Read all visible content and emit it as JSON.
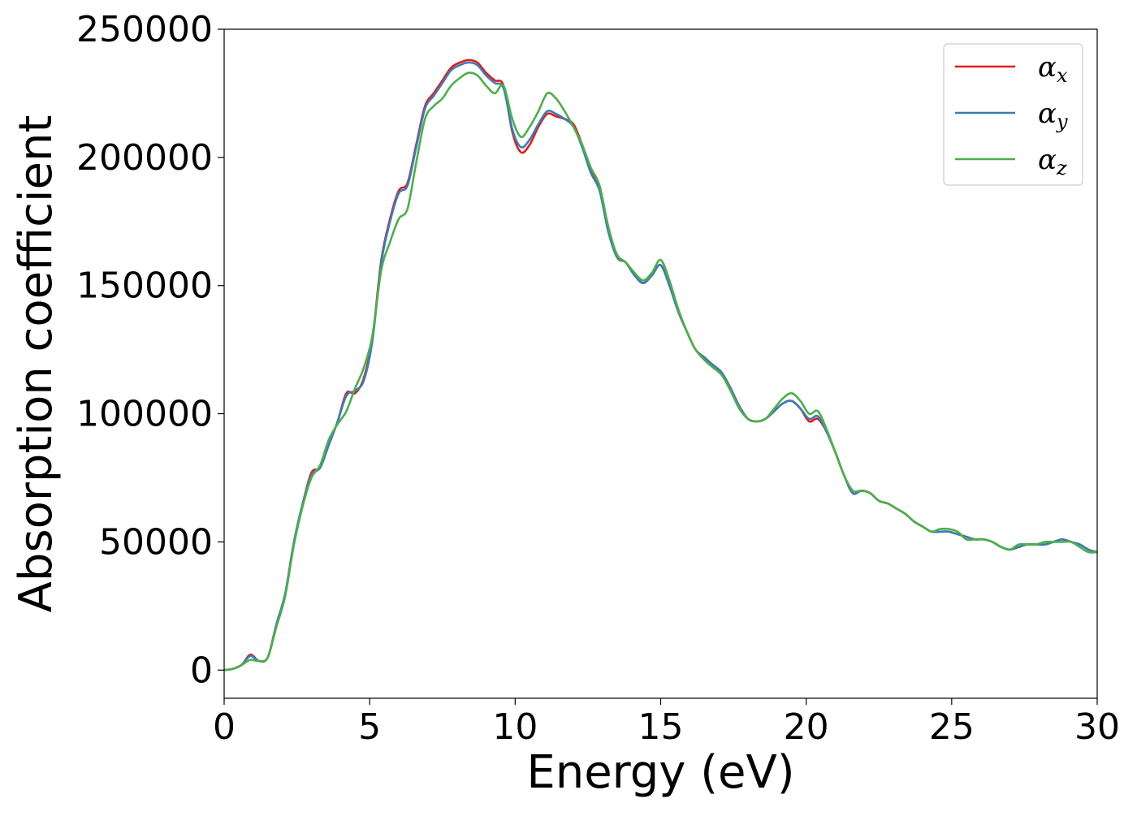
{
  "chart_data": {
    "type": "line",
    "title": "",
    "xlabel": "Energy (eV)",
    "ylabel": "Absorption coefficient",
    "xlim": [
      0,
      30
    ],
    "ylim": [
      -11000,
      250000
    ],
    "xticks": [
      0,
      5,
      10,
      15,
      20,
      25,
      30
    ],
    "yticks": [
      0,
      50000,
      100000,
      150000,
      200000,
      250000
    ],
    "xtick_labels": [
      "0",
      "5",
      "10",
      "15",
      "20",
      "25",
      "30"
    ],
    "ytick_labels": [
      "0",
      "50000",
      "100000",
      "150000",
      "200000",
      "250000"
    ],
    "grid": false,
    "legend_position": "top-right",
    "series": [
      {
        "name": "αx",
        "legend_base": "α",
        "legend_sub": "x",
        "color": "#e41a1c",
        "x": [
          0,
          0.3,
          0.6,
          0.9,
          1.2,
          1.5,
          1.8,
          2.1,
          2.4,
          2.7,
          3.0,
          3.3,
          3.6,
          3.9,
          4.2,
          4.5,
          4.8,
          5.1,
          5.4,
          5.7,
          6.0,
          6.3,
          6.6,
          6.9,
          7.2,
          7.5,
          7.8,
          8.1,
          8.4,
          8.7,
          9.0,
          9.3,
          9.6,
          9.9,
          10.2,
          10.5,
          10.8,
          11.1,
          11.4,
          11.7,
          12.0,
          12.3,
          12.6,
          12.9,
          13.2,
          13.5,
          13.8,
          14.1,
          14.4,
          14.7,
          15.0,
          15.3,
          15.6,
          15.9,
          16.2,
          16.5,
          16.8,
          17.1,
          17.4,
          17.7,
          18.0,
          18.3,
          18.6,
          18.9,
          19.2,
          19.5,
          19.8,
          20.1,
          20.4,
          20.7,
          21.0,
          21.3,
          21.6,
          21.9,
          22.2,
          22.5,
          22.8,
          23.1,
          23.4,
          23.7,
          24.0,
          24.3,
          24.6,
          24.9,
          25.2,
          25.5,
          25.8,
          26.1,
          26.4,
          26.7,
          27.0,
          27.3,
          27.6,
          27.9,
          28.2,
          28.5,
          28.8,
          29.1,
          29.4,
          29.7,
          30.0
        ],
        "y": [
          0,
          500,
          2000,
          6000,
          3500,
          5000,
          18000,
          30000,
          50000,
          65000,
          77000,
          79000,
          88000,
          97000,
          108000,
          108000,
          114000,
          130000,
          160000,
          176000,
          187000,
          190000,
          205000,
          220000,
          225000,
          230000,
          235000,
          237000,
          238000,
          237000,
          233000,
          230000,
          228000,
          210000,
          202000,
          205000,
          212000,
          217000,
          216000,
          215000,
          213000,
          205000,
          195000,
          188000,
          172000,
          162000,
          159000,
          154000,
          151000,
          154000,
          158000,
          150000,
          140000,
          132000,
          125000,
          122000,
          119000,
          116000,
          110000,
          103000,
          98000,
          97000,
          98000,
          101000,
          104000,
          105000,
          102000,
          97000,
          98000,
          93000,
          85000,
          76000,
          69000,
          70000,
          69000,
          66000,
          65000,
          63000,
          61000,
          58000,
          56000,
          54000,
          54000,
          54000,
          53000,
          52000,
          51000,
          51000,
          50000,
          48000,
          47000,
          48000,
          49000,
          49000,
          49000,
          50000,
          51000,
          50000,
          49000,
          47000,
          46000
        ]
      },
      {
        "name": "αy",
        "legend_base": "α",
        "legend_sub": "y",
        "color": "#377eb8",
        "x": [
          0,
          0.3,
          0.6,
          0.9,
          1.2,
          1.5,
          1.8,
          2.1,
          2.4,
          2.7,
          3.0,
          3.3,
          3.6,
          3.9,
          4.2,
          4.5,
          4.8,
          5.1,
          5.4,
          5.7,
          6.0,
          6.3,
          6.6,
          6.9,
          7.2,
          7.5,
          7.8,
          8.1,
          8.4,
          8.7,
          9.0,
          9.3,
          9.6,
          9.9,
          10.2,
          10.5,
          10.8,
          11.1,
          11.4,
          11.7,
          12.0,
          12.3,
          12.6,
          12.9,
          13.2,
          13.5,
          13.8,
          14.1,
          14.4,
          14.7,
          15.0,
          15.3,
          15.6,
          15.9,
          16.2,
          16.5,
          16.8,
          17.1,
          17.4,
          17.7,
          18.0,
          18.3,
          18.6,
          18.9,
          19.2,
          19.5,
          19.8,
          20.1,
          20.4,
          20.7,
          21.0,
          21.3,
          21.6,
          21.9,
          22.2,
          22.5,
          22.8,
          23.1,
          23.4,
          23.7,
          24.0,
          24.3,
          24.6,
          24.9,
          25.2,
          25.5,
          25.8,
          26.1,
          26.4,
          26.7,
          27.0,
          27.3,
          27.6,
          27.9,
          28.2,
          28.5,
          28.8,
          29.1,
          29.4,
          29.7,
          30.0
        ],
        "y": [
          0,
          500,
          2000,
          5500,
          3500,
          5000,
          18000,
          30000,
          50000,
          65000,
          76000,
          79000,
          88000,
          97000,
          107000,
          109000,
          113000,
          129000,
          159000,
          175000,
          186000,
          189000,
          204000,
          219000,
          224000,
          229000,
          234000,
          236000,
          237000,
          236000,
          232000,
          229000,
          227000,
          211000,
          204000,
          207000,
          213000,
          218000,
          217000,
          215000,
          212000,
          204000,
          194000,
          187000,
          171000,
          161000,
          159000,
          154000,
          151000,
          154000,
          158000,
          150000,
          140000,
          132000,
          125000,
          122000,
          119000,
          116000,
          110000,
          103000,
          98000,
          97000,
          98000,
          101000,
          104000,
          105000,
          102000,
          98000,
          99000,
          93000,
          85000,
          76000,
          69000,
          70000,
          69000,
          66000,
          65000,
          63000,
          61000,
          58000,
          56000,
          54000,
          54000,
          54000,
          53000,
          52000,
          51000,
          51000,
          50000,
          48000,
          47000,
          48000,
          49000,
          49000,
          49000,
          50000,
          51000,
          50000,
          49000,
          47000,
          46000
        ]
      },
      {
        "name": "αz",
        "legend_base": "α",
        "legend_sub": "z",
        "color": "#4daf4a",
        "x": [
          0,
          0.3,
          0.6,
          0.9,
          1.2,
          1.5,
          1.8,
          2.1,
          2.4,
          2.7,
          3.0,
          3.3,
          3.6,
          3.9,
          4.2,
          4.5,
          4.8,
          5.1,
          5.4,
          5.7,
          6.0,
          6.3,
          6.6,
          6.9,
          7.2,
          7.5,
          7.8,
          8.1,
          8.4,
          8.7,
          9.0,
          9.3,
          9.6,
          9.9,
          10.2,
          10.5,
          10.8,
          11.1,
          11.4,
          11.7,
          12.0,
          12.3,
          12.6,
          12.9,
          13.2,
          13.5,
          13.8,
          14.1,
          14.4,
          14.7,
          15.0,
          15.3,
          15.6,
          15.9,
          16.2,
          16.5,
          16.8,
          17.1,
          17.4,
          17.7,
          18.0,
          18.3,
          18.6,
          18.9,
          19.2,
          19.5,
          19.8,
          20.1,
          20.4,
          20.7,
          21.0,
          21.3,
          21.6,
          21.9,
          22.2,
          22.5,
          22.8,
          23.1,
          23.4,
          23.7,
          24.0,
          24.3,
          24.6,
          24.9,
          25.2,
          25.5,
          25.8,
          26.1,
          26.4,
          26.7,
          27.0,
          27.3,
          27.6,
          27.9,
          28.2,
          28.5,
          28.8,
          29.1,
          29.4,
          29.7,
          30.0
        ],
        "y": [
          0,
          500,
          2000,
          4000,
          3500,
          5000,
          17000,
          29000,
          49000,
          64000,
          75000,
          80000,
          90000,
          96000,
          101000,
          110000,
          118000,
          131000,
          156000,
          167000,
          176000,
          180000,
          198000,
          215000,
          220000,
          223000,
          228000,
          231000,
          233000,
          232000,
          228000,
          225000,
          228000,
          215000,
          208000,
          212000,
          218000,
          225000,
          223000,
          218000,
          212000,
          205000,
          196000,
          189000,
          173000,
          162000,
          159000,
          155000,
          152000,
          155000,
          160000,
          152000,
          141000,
          132000,
          125000,
          121000,
          118000,
          115000,
          109000,
          102000,
          98000,
          97000,
          98000,
          102000,
          106000,
          108000,
          105000,
          100000,
          101000,
          94000,
          85000,
          76000,
          70000,
          70000,
          69000,
          66000,
          65000,
          63000,
          61000,
          58000,
          56000,
          54000,
          55000,
          55000,
          54000,
          51000,
          51000,
          51000,
          50000,
          48000,
          47000,
          49000,
          49000,
          49000,
          50000,
          50000,
          50000,
          50000,
          48000,
          46000,
          46000
        ]
      }
    ]
  }
}
